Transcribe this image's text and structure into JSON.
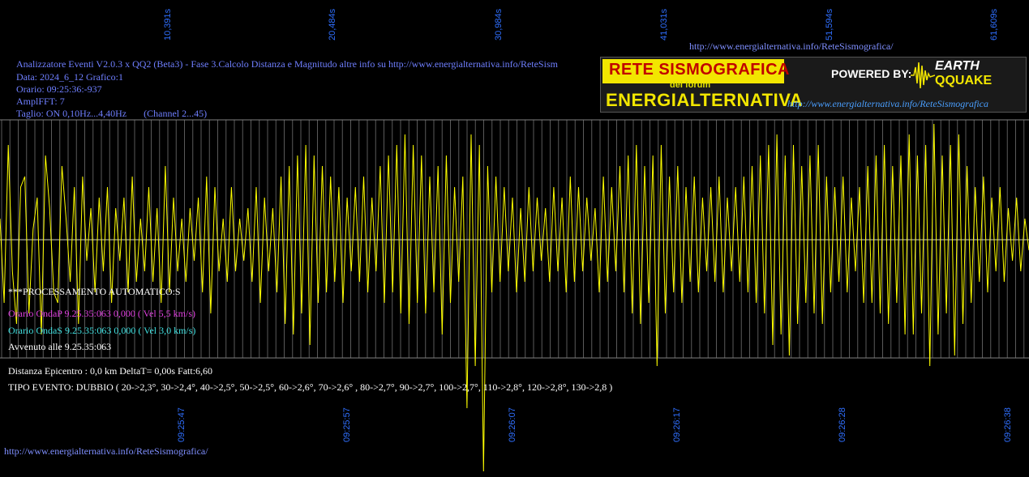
{
  "header": {
    "title_line": "Analizzatore Eventi V2.0.3 x QQ2 (Beta3) - Fase 3.Calcolo Distanza e Magnitudo altre info su http://www.energialternativa.info/ReteSism",
    "data_line": "Data: 2024_6_12 Grafico:1",
    "orario_line": "Orario: 09:25:36:-937",
    "ampl_line": "AmplFFT: 7",
    "taglio_line": "Taglio: ON 0,10Hz...4,40Hz       (Channel 2...45)",
    "top_url": "http://www.energialternativa.info/ReteSismografica/"
  },
  "logo": {
    "line1": "RETE SISMOGRAFICA",
    "line2": "del forum",
    "line3": "ENERGIALTERNATIVA",
    "powered": "POWERED BY:",
    "brand1": "EARTH",
    "brand2": "QQUAKE",
    "url": "http://www.energialternativa.info/ReteSismografica"
  },
  "processing": {
    "title": "***PROCESSAMENTO AUTOMATICO:S",
    "onda_p": "Orario OndaP 9.25.35:063  0,000 ( Vel 5,5 km/s)",
    "onda_s": "Orario OndaS 9.25.35:063  0,000 ( Vel 3,0 km/s)",
    "avvenuto": "Avvenuto alle 9.25.35:063",
    "distanza": "Distanza Epicentro : 0,0 km DeltaT= 0,00s  Fatt:6,60",
    "tipo": "TIPO EVENTO: DUBBIO ( 20->2,3°, 30->2,4°, 40->2,5°, 50->2,5°, 60->2,6°, 70->2,6° , 80->2,7°, 90->2,7°, 100->2,7°, 110->2,8°, 120->2,8°, 130->2,8 )"
  },
  "footer_url": "http://www.energialternativa.info/ReteSismografica/",
  "colors": {
    "trace": "#ffff00",
    "grid": "#808080",
    "axis_label": "#2f6fff",
    "background": "#000000"
  },
  "chart_data": {
    "type": "line",
    "top_axis_ticks": [
      "10,391s",
      "20,484s",
      "30,984s",
      "41,031s",
      "51,594s",
      "61,609s"
    ],
    "bottom_axis_ticks": [
      "09:25:47",
      "09:25:57",
      "09:26:07",
      "09:26:17",
      "09:26:28",
      "09:26:38"
    ],
    "grid": true,
    "series": [
      {
        "values": [
          0.2,
          -0.6,
          0.9,
          -0.3,
          -0.8,
          0.5,
          0.6,
          -0.7,
          0.1,
          0.4,
          -0.9,
          0.8,
          0.3,
          -0.5,
          -0.6,
          0.7,
          0.2,
          -0.4,
          0.5,
          -0.8,
          0.6,
          -0.2,
          0.3,
          -0.5,
          0.4,
          -0.3,
          0.5,
          -0.6,
          0.3,
          -0.2,
          0.4,
          -0.5,
          0.6,
          -0.4,
          0.2,
          -0.3,
          0.5,
          -0.4,
          0.3,
          -0.6,
          0.7,
          -0.5,
          0.4,
          -0.3,
          0.2,
          -0.4,
          0.3,
          -0.2,
          0.4,
          -0.5,
          0.6,
          -0.7,
          0.5,
          -0.3,
          0.2,
          -0.4,
          0.5,
          -0.3,
          0.2,
          -0.2,
          0.3,
          -0.4,
          0.5,
          -0.6,
          0.4,
          -0.3,
          0.3,
          -0.5,
          0.6,
          -0.8,
          0.7,
          -0.9,
          0.8,
          -0.7,
          0.9,
          -1.0,
          0.8,
          -0.6,
          0.7,
          -0.5,
          0.6,
          -0.4,
          0.5,
          -0.6,
          0.4,
          -0.3,
          0.5,
          -0.4,
          0.6,
          -0.5,
          0.4,
          -0.3,
          0.7,
          -0.6,
          0.8,
          -0.5,
          0.9,
          -0.7,
          1.0,
          -0.8,
          0.9,
          -0.6,
          0.8,
          -0.7,
          0.6,
          -0.5,
          0.7,
          -0.9,
          0.8,
          -0.6,
          0.5,
          -0.4,
          0.6,
          -1.6,
          1.0,
          -1.2,
          0.9,
          -2.2,
          0.7,
          -0.5,
          0.6,
          -0.4,
          0.5,
          -0.3,
          0.4,
          -0.5,
          0.3,
          -0.4,
          0.5,
          -0.3,
          0.4,
          -0.2,
          0.3,
          -0.4,
          0.5,
          -0.3,
          0.4,
          -0.5,
          0.6,
          -0.4,
          0.5,
          -0.3,
          0.4,
          -0.2,
          0.3,
          -0.5,
          0.6,
          -0.4,
          0.5,
          -0.3,
          0.7,
          -0.5,
          0.8,
          -0.7,
          0.9,
          -0.8,
          0.7,
          -0.6,
          0.8,
          -1.2,
          0.9,
          -0.7,
          0.6,
          -0.5,
          0.7,
          -0.6,
          0.5,
          -0.4,
          0.6,
          -0.5,
          0.4,
          -0.3,
          0.5,
          -0.4,
          0.6,
          -0.5,
          0.4,
          -0.3,
          0.5,
          -0.4,
          0.6,
          -0.5,
          0.7,
          -0.6,
          0.8,
          -0.7,
          0.9,
          -1.0,
          1.0,
          -0.9,
          0.8,
          -1.1,
          0.9,
          -0.8,
          0.7,
          -0.6,
          0.8,
          -0.7,
          0.9,
          -0.8,
          0.6,
          -0.5,
          0.5,
          -0.4,
          0.6,
          -0.5,
          0.4,
          -0.3,
          0.5,
          -0.6,
          0.7,
          -0.6,
          0.8,
          -0.7,
          0.9,
          -0.8,
          0.7,
          -0.6,
          0.8,
          -0.9,
          1.0,
          -0.9,
          0.8,
          -0.7,
          0.9,
          -1.2,
          1.1,
          -0.9,
          0.8,
          -0.7,
          0.9,
          -1.1,
          1.0,
          -0.8,
          0.7,
          -0.6,
          0.5,
          -0.4,
          0.6,
          -0.5,
          0.4,
          -0.3,
          0.5,
          -0.4,
          0.3,
          -0.2,
          0.4,
          -0.3,
          0.2,
          -0.1
        ]
      }
    ]
  }
}
